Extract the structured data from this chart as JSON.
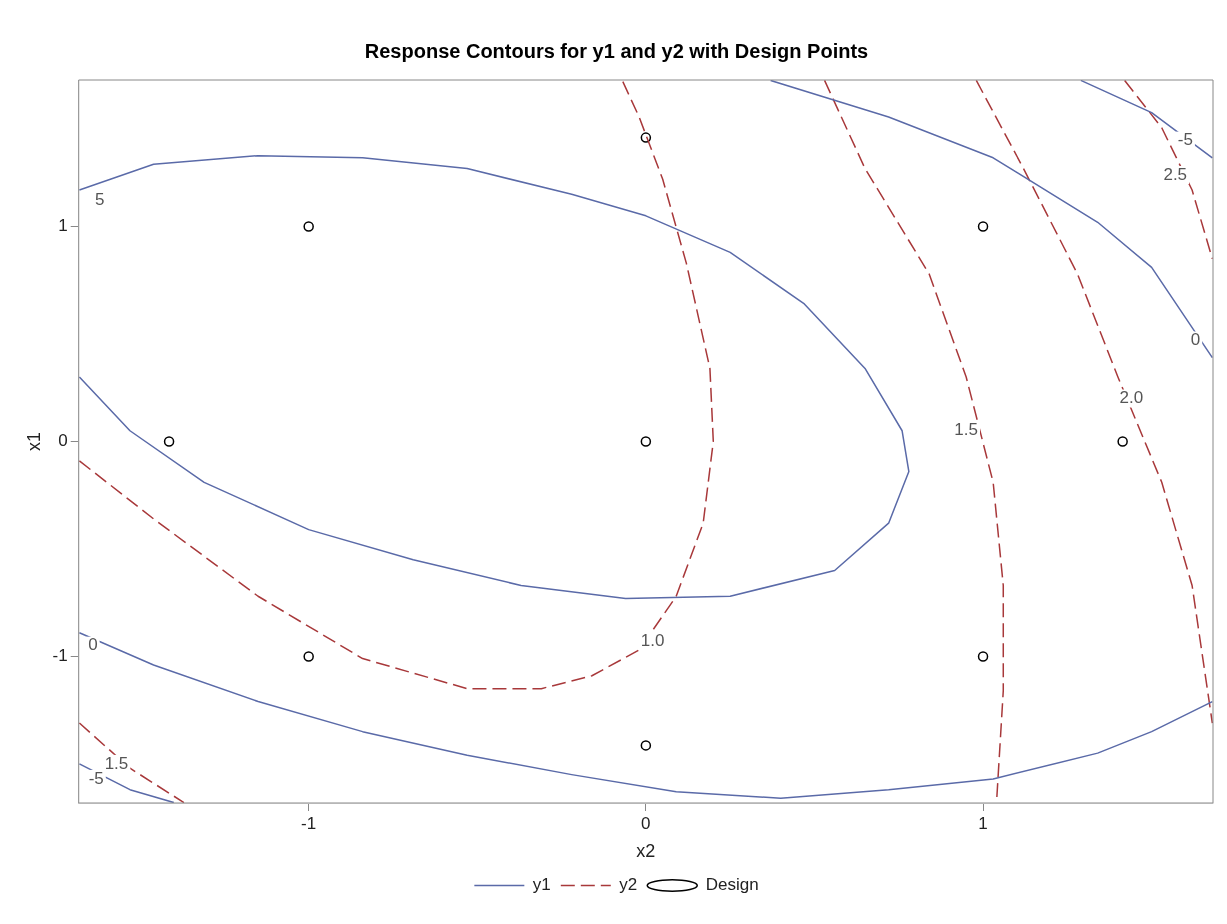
{
  "chart_data": {
    "type": "line",
    "title": "Response Contours for y1 and y2 with Design Points",
    "xlabel": "x2",
    "ylabel": "x1",
    "xlim": [
      -1.682,
      1.682
    ],
    "ylim": [
      -1.682,
      1.682
    ],
    "xticks": [
      -1,
      0,
      1
    ],
    "yticks": [
      -1,
      0,
      1
    ],
    "grid": false,
    "legend": "bottom",
    "series": [
      {
        "name": "y1",
        "color": "#5a6aa8",
        "line_style": "solid",
        "marker": "none",
        "x": [
          -1.68,
          -1.46,
          -1.15,
          -0.84,
          -0.53,
          -0.22,
          0,
          0.25,
          0.47,
          0.65,
          0.76,
          0.78,
          0.72,
          0.56,
          0.25,
          -0.06,
          -0.37,
          -0.69,
          -1.0,
          -1.31,
          -1.53,
          -1.68
        ],
        "values": [
          1.17,
          1.29,
          1.33,
          1.32,
          1.27,
          1.15,
          1.05,
          0.88,
          0.64,
          0.34,
          0.05,
          -0.14,
          -0.38,
          -0.6,
          -0.72,
          -0.73,
          -0.67,
          -0.55,
          -0.41,
          -0.19,
          0.05,
          0.3
        ]
      },
      {
        "type": "line",
        "color": "#5a6aa8",
        "line_style": "solid",
        "marker": "none",
        "x": [
          -1.68,
          -1.46,
          -1.15,
          -0.84,
          -0.53,
          -0.22,
          0.09,
          0.4,
          0.72,
          1.03,
          1.34,
          1.5,
          1.68
        ],
        "values": [
          -0.89,
          -1.04,
          -1.21,
          -1.35,
          -1.46,
          -1.55,
          -1.63,
          -1.66,
          -1.62,
          -1.57,
          -1.45,
          -1.35,
          -1.21
        ]
      },
      {
        "type": "line",
        "color": "#5a6aa8",
        "line_style": "solid",
        "marker": "none",
        "x": [
          0.37,
          0.72,
          1.03,
          1.34,
          1.5,
          1.68
        ],
        "values": [
          1.68,
          1.51,
          1.32,
          1.02,
          0.81,
          0.39
        ]
      },
      {
        "type": "line",
        "color": "#5a6aa8",
        "line_style": "solid",
        "marker": "none",
        "x": [
          1.29,
          1.5,
          1.68
        ],
        "values": [
          1.68,
          1.53,
          1.32
        ]
      },
      {
        "type": "line",
        "color": "#5a6aa8",
        "line_style": "solid",
        "marker": "none",
        "x": [
          -1.68,
          -1.53,
          -1.4
        ],
        "values": [
          -1.5,
          -1.62,
          -1.68
        ]
      },
      {
        "name": "y2",
        "color": "#a8383a",
        "line_style": "dashed",
        "marker": "none",
        "x": [
          -1.68,
          -1.46,
          -1.15,
          -0.84,
          -0.53,
          -0.31,
          -0.16,
          -0.02,
          0.09,
          0.17,
          0.2,
          0.19,
          0.12,
          0.05,
          -0.02,
          -0.07
        ],
        "values": [
          -0.09,
          -0.36,
          -0.72,
          -1.01,
          -1.15,
          -1.15,
          -1.09,
          -0.97,
          -0.72,
          -0.38,
          0.0,
          0.34,
          0.83,
          1.22,
          1.51,
          1.68
        ]
      },
      {
        "type": "line",
        "color": "#a8383a",
        "line_style": "dashed",
        "marker": "none",
        "x": [
          0.53,
          0.65,
          0.84,
          0.95,
          1.03,
          1.06,
          1.06,
          1.04
        ],
        "values": [
          1.68,
          1.27,
          0.78,
          0.3,
          -0.19,
          -0.67,
          -1.16,
          -1.68
        ]
      },
      {
        "type": "line",
        "color": "#a8383a",
        "line_style": "dashed",
        "marker": "none",
        "x": [
          0.98,
          1.12,
          1.28,
          1.4,
          1.53,
          1.62,
          1.68
        ],
        "values": [
          1.68,
          1.27,
          0.78,
          0.3,
          -0.19,
          -0.67,
          -1.31
        ]
      },
      {
        "type": "line",
        "color": "#a8383a",
        "line_style": "dashed",
        "marker": "none",
        "x": [
          1.42,
          1.53,
          1.62,
          1.68
        ],
        "values": [
          1.68,
          1.46,
          1.17,
          0.85
        ]
      },
      {
        "type": "line",
        "color": "#a8383a",
        "line_style": "dashed",
        "marker": "none",
        "x": [
          -1.68,
          -1.53,
          -1.37
        ],
        "values": [
          -1.31,
          -1.52,
          -1.68
        ]
      },
      {
        "name": "Design",
        "type": "scatter",
        "color": "#000000",
        "marker": "circle",
        "x": [
          -1,
          1,
          -1.414,
          0,
          1.414,
          -1,
          1,
          0,
          0
        ],
        "values": [
          1,
          1,
          0,
          0,
          0,
          -1,
          -1,
          1.414,
          -1.414
        ]
      }
    ],
    "annotations": [
      {
        "text": "5",
        "x": -1.62,
        "y": 1.12
      },
      {
        "text": "0",
        "x": -1.64,
        "y": -0.95
      },
      {
        "text": "0",
        "x": 1.63,
        "y": 0.47
      },
      {
        "text": "-5",
        "x": 1.6,
        "y": 1.4
      },
      {
        "text": "-5",
        "x": -1.63,
        "y": -1.57
      },
      {
        "text": "1.0",
        "x": 0.02,
        "y": -0.93
      },
      {
        "text": "1.5",
        "x": 0.95,
        "y": 0.05
      },
      {
        "text": "2.0",
        "x": 1.44,
        "y": 0.2
      },
      {
        "text": "2.5",
        "x": 1.57,
        "y": 1.24
      },
      {
        "text": "1.5",
        "x": -1.57,
        "y": -1.5
      }
    ]
  }
}
